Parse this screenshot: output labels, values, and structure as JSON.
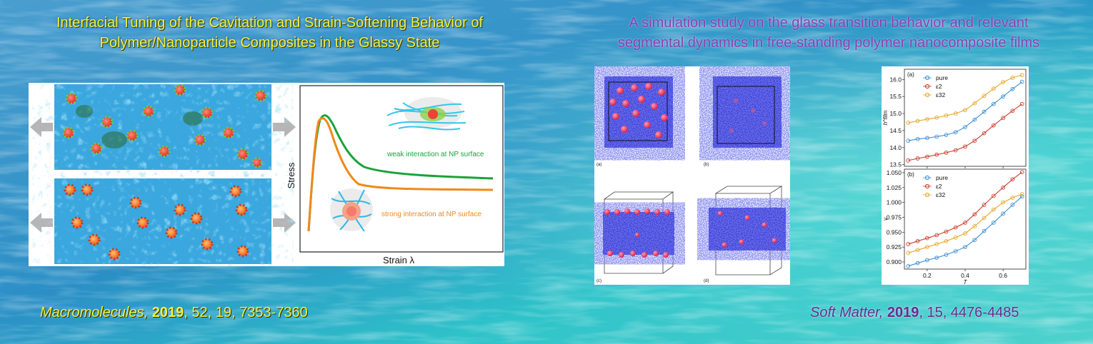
{
  "left_title": {
    "line1": "Interfacial Tuning of the Cavitation and Strain-Softening Behavior of",
    "line2": "Polymer/Nanoparticle Composites in the Glassy State"
  },
  "right_title": {
    "line1": "A simulation study on the glass transition behavior and relevant",
    "line2": "segmental dynamics in free-standing polymer nanocomposite films"
  },
  "left_citation": {
    "journal": "Macromolecules,",
    "year": "2019",
    "rest": ", 52, 19, 7353-7360"
  },
  "right_citation": {
    "journal": "Soft Matter,",
    "year": "2019",
    "rest": ", 15, 4476-4485"
  },
  "stress_plot": {
    "ylabel": "Stress",
    "xlabel": "Strain λ",
    "weak_label": "weak interaction at NP surface",
    "strong_label": "strong interaction at NP surface",
    "weak_color": "#1aa33a",
    "strong_color": "#f0891a"
  },
  "snapshot_labels": [
    "(a)",
    "(b)",
    "(c)",
    "(d)"
  ],
  "chart_data": [
    {
      "type": "line",
      "panel_label": "(a)",
      "ylabel": "h^film",
      "xlabel": "",
      "x_ticks": [
        "0.2",
        "0.4",
        "0.6"
      ],
      "y_ticks": [
        "13.5",
        "14.0",
        "14.5",
        "15.0",
        "15.5",
        "16.0"
      ],
      "xlim": [
        0.08,
        0.72
      ],
      "ylim": [
        13.45,
        16.3
      ],
      "legend": [
        "pure",
        "ε2",
        "ε32"
      ],
      "series": [
        {
          "name": "pure",
          "color": "#3d8fd6",
          "x": [
            0.1,
            0.15,
            0.2,
            0.25,
            0.3,
            0.35,
            0.4,
            0.45,
            0.5,
            0.55,
            0.6,
            0.65,
            0.7
          ],
          "y": [
            14.2,
            14.25,
            14.28,
            14.32,
            14.37,
            14.45,
            14.6,
            14.82,
            15.05,
            15.28,
            15.5,
            15.72,
            15.93
          ]
        },
        {
          "name": "ε2",
          "color": "#cc3b2b",
          "x": [
            0.1,
            0.15,
            0.2,
            0.25,
            0.3,
            0.35,
            0.4,
            0.45,
            0.5,
            0.55,
            0.6,
            0.65,
            0.7
          ],
          "y": [
            13.62,
            13.68,
            13.73,
            13.79,
            13.85,
            13.92,
            14.03,
            14.2,
            14.42,
            14.65,
            14.87,
            15.08,
            15.28
          ]
        },
        {
          "name": "ε32",
          "color": "#e5a62a",
          "x": [
            0.1,
            0.15,
            0.2,
            0.25,
            0.3,
            0.35,
            0.4,
            0.45,
            0.5,
            0.55,
            0.6,
            0.65,
            0.7
          ],
          "y": [
            14.73,
            14.78,
            14.83,
            14.88,
            14.94,
            15.0,
            15.1,
            15.3,
            15.52,
            15.73,
            15.92,
            16.05,
            16.13
          ]
        }
      ]
    },
    {
      "type": "line",
      "panel_label": "(b)",
      "ylabel": "v",
      "xlabel": "T",
      "x_ticks": [
        "0.2",
        "0.4",
        "0.6"
      ],
      "y_ticks": [
        "0.900",
        "0.925",
        "0.950",
        "0.975",
        "1.000",
        "1.025",
        "1.050"
      ],
      "xlim": [
        0.08,
        0.72
      ],
      "ylim": [
        0.888,
        1.056
      ],
      "legend": [
        "pure",
        "ε2",
        "ε32"
      ],
      "series": [
        {
          "name": "pure",
          "color": "#3d8fd6",
          "x": [
            0.1,
            0.15,
            0.2,
            0.25,
            0.3,
            0.35,
            0.4,
            0.45,
            0.5,
            0.55,
            0.6,
            0.65,
            0.7
          ],
          "y": [
            0.893,
            0.898,
            0.903,
            0.907,
            0.912,
            0.918,
            0.925,
            0.937,
            0.952,
            0.966,
            0.981,
            0.996,
            1.01
          ]
        },
        {
          "name": "ε2",
          "color": "#cc3b2b",
          "x": [
            0.1,
            0.15,
            0.2,
            0.25,
            0.3,
            0.35,
            0.4,
            0.45,
            0.5,
            0.55,
            0.6,
            0.65,
            0.7
          ],
          "y": [
            0.93,
            0.935,
            0.94,
            0.945,
            0.951,
            0.958,
            0.966,
            0.98,
            0.996,
            1.011,
            1.025,
            1.039,
            1.051
          ]
        },
        {
          "name": "ε32",
          "color": "#e5a62a",
          "x": [
            0.1,
            0.15,
            0.2,
            0.25,
            0.3,
            0.35,
            0.4,
            0.45,
            0.5,
            0.55,
            0.6,
            0.65,
            0.7
          ],
          "y": [
            0.915,
            0.92,
            0.925,
            0.93,
            0.935,
            0.941,
            0.948,
            0.96,
            0.974,
            0.988,
            1.0,
            1.008,
            1.014
          ]
        }
      ]
    }
  ]
}
